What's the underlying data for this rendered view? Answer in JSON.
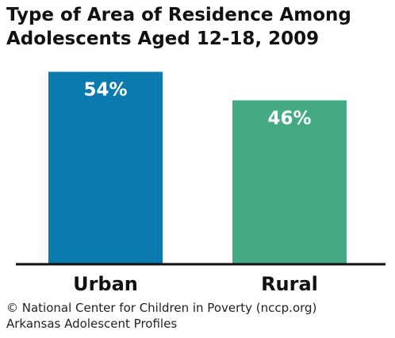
{
  "chart_data": {
    "type": "bar",
    "title_lines": [
      "Type of Area of Residence Among",
      "Adolescents Aged 12-18, 2009"
    ],
    "categories": [
      "Urban",
      "Rural"
    ],
    "values": [
      54,
      46
    ],
    "value_labels": [
      "54%",
      "46%"
    ],
    "ylim": [
      0,
      55
    ],
    "grid": false,
    "colors": [
      "#0b7aae",
      "#44aa84"
    ]
  },
  "footer": {
    "line1": "© National Center for Children in Poverty (nccp.org)",
    "line2": "Arkansas Adolescent Profiles"
  }
}
